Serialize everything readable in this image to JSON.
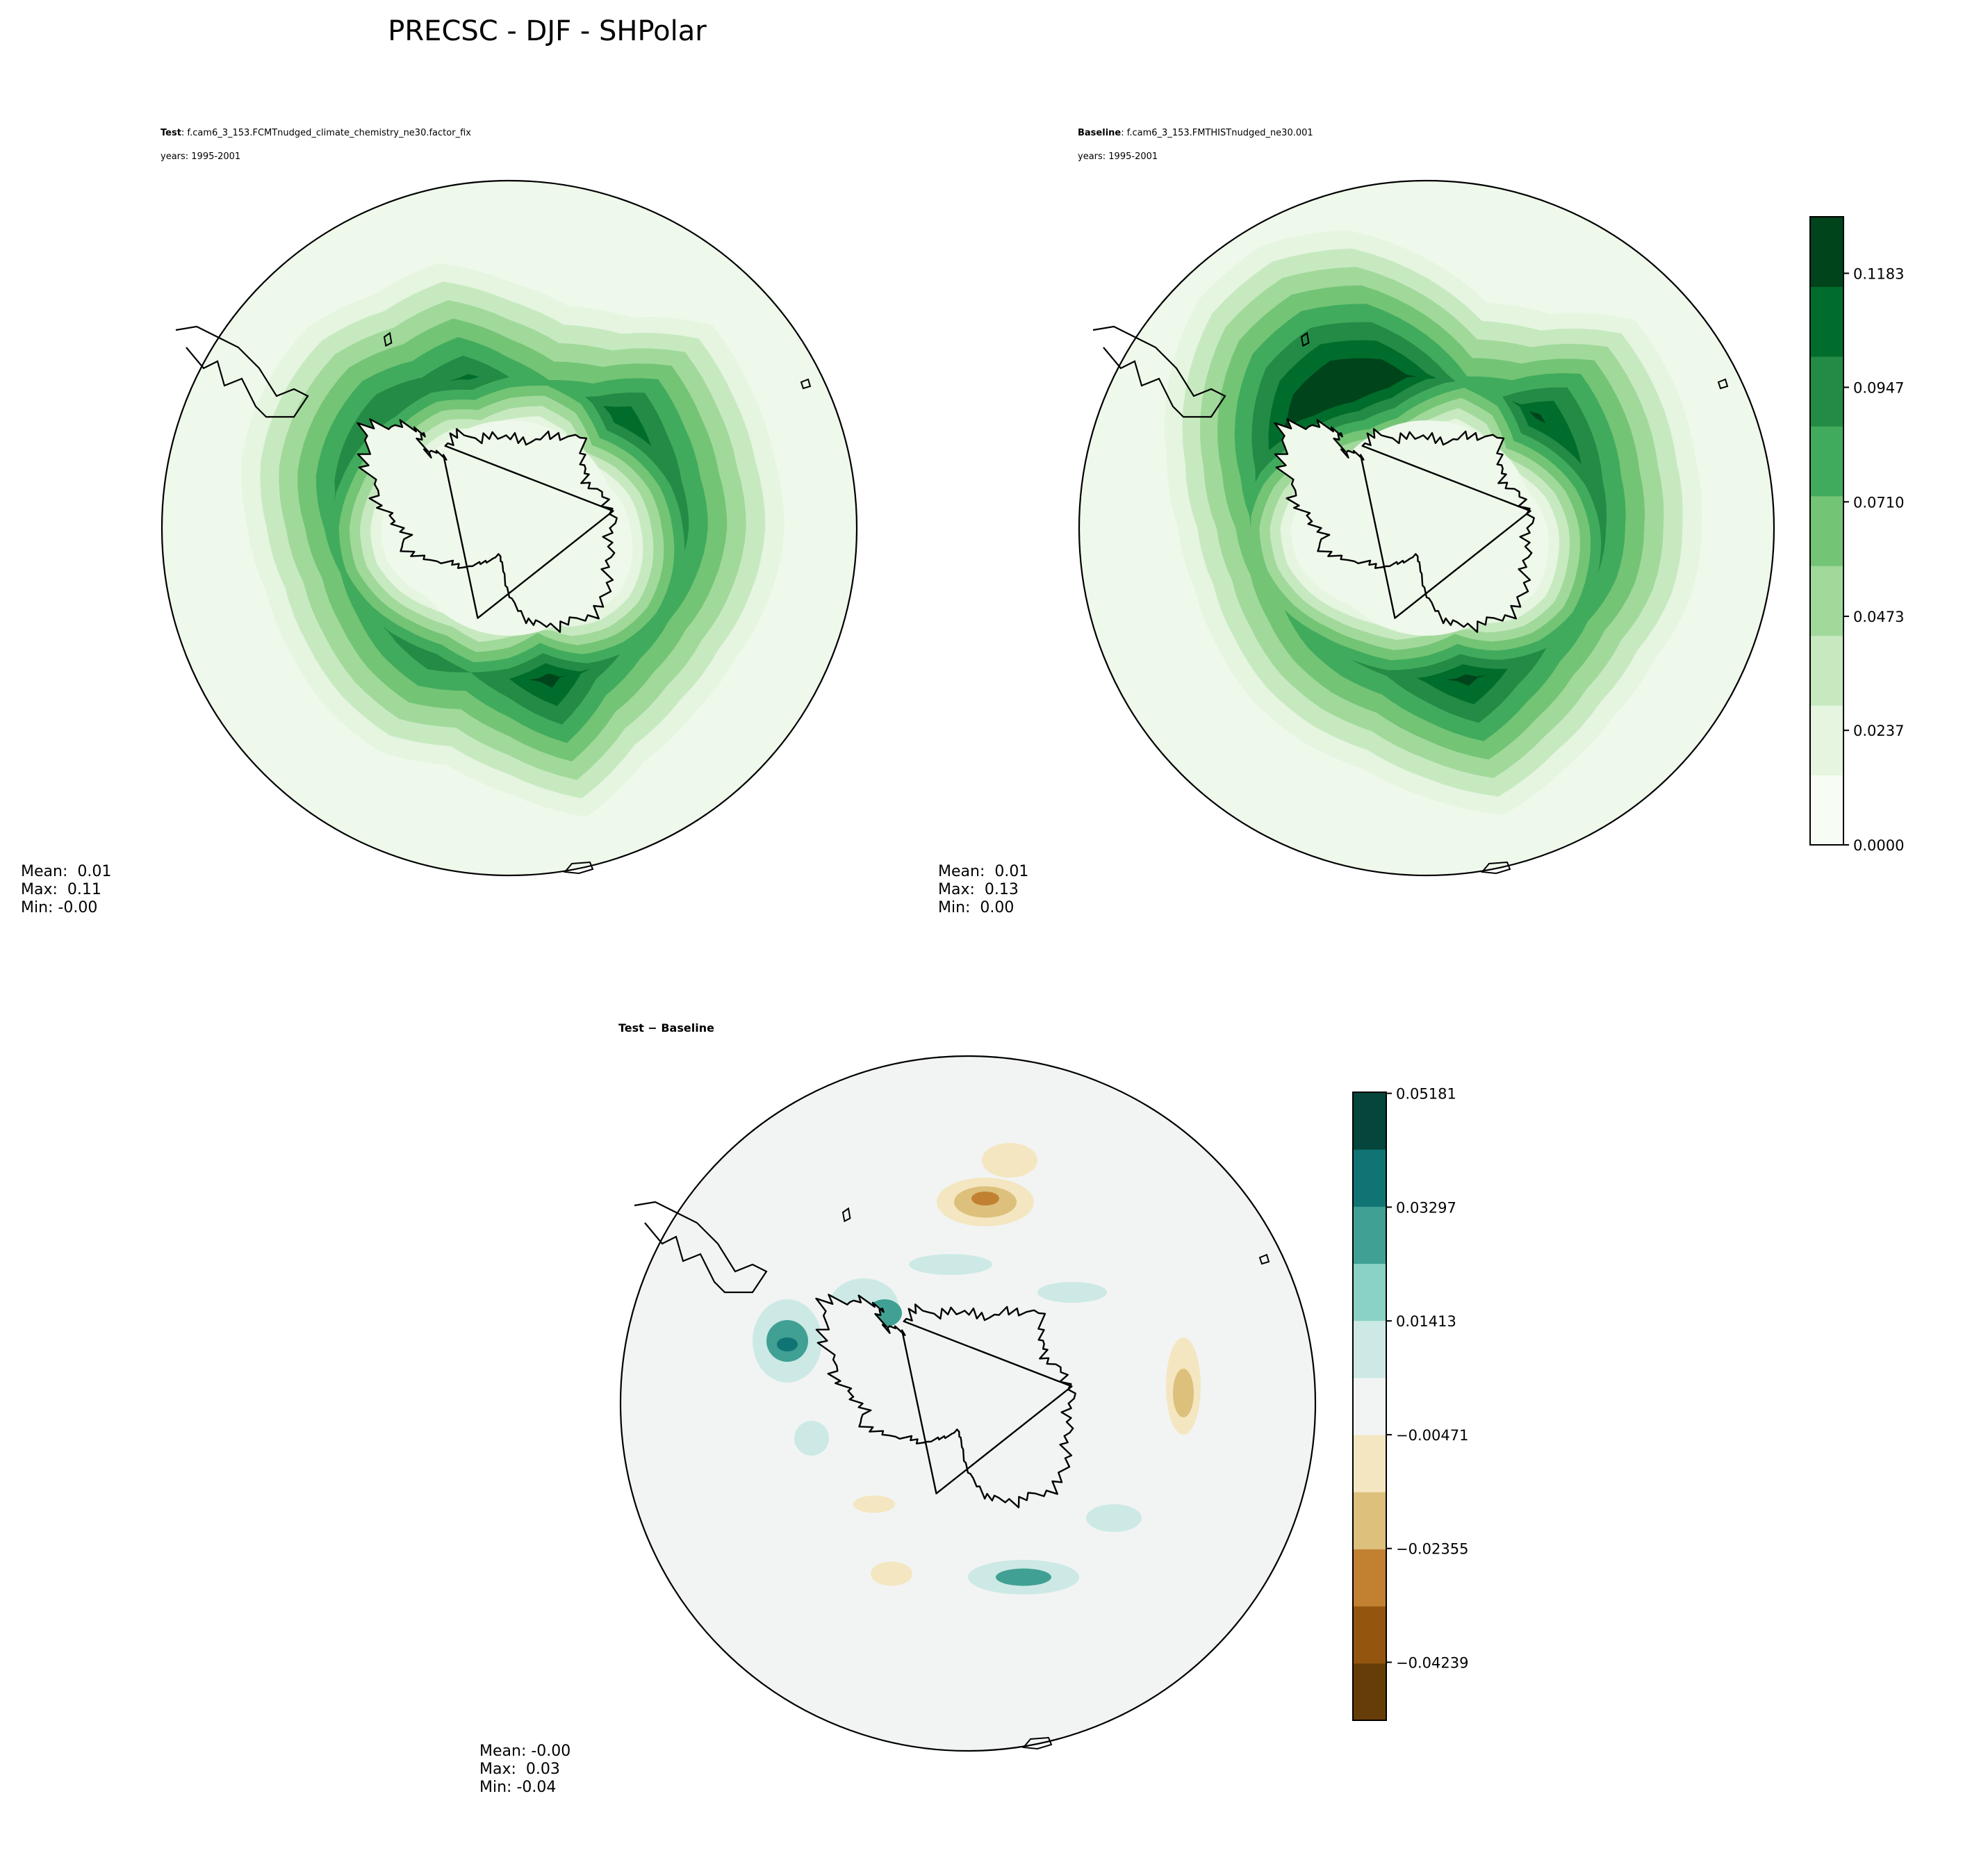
{
  "title": "PRECSC - DJF - SHPolar",
  "colors": {
    "ocean_test": "#eef8eb",
    "ocean_diff": "#f2f4f3",
    "coast": "#000000",
    "greens": [
      "#f7fcf5",
      "#e5f5e0",
      "#c7e9c0",
      "#a1d99b",
      "#74c476",
      "#41ab5d",
      "#238b45",
      "#006d2c",
      "#00441b"
    ],
    "brbg": [
      "#663d09",
      "#94560e",
      "#c18131",
      "#ddc07b",
      "#f4e6c1",
      "#f2f4f3",
      "#cce9e5",
      "#8ad2c5",
      "#40a094",
      "#107474",
      "#04463c"
    ]
  },
  "chart_data": [
    {
      "type": "heatmap",
      "name": "test",
      "label": "Test",
      "case": ": f.cam6_3_153.FCMTnudged_climate_chemistry_ne30.factor_fix",
      "years": "years: 1995-2001",
      "projection": "south polar stereographic",
      "stats": {
        "mean": "Mean:  0.01",
        "max": "Max:  0.11",
        "min": "Min: -0.00"
      },
      "band_intensity_by_longitude": [
        0.62,
        0.58,
        0.55,
        0.58,
        0.66,
        0.85,
        0.7,
        0.6,
        0.66,
        0.62,
        0.56,
        0.52,
        0.55,
        0.62,
        0.66,
        0.7,
        0.66,
        0.72,
        0.6,
        0.52,
        0.58,
        0.78,
        0.7,
        0.64
      ]
    },
    {
      "type": "heatmap",
      "name": "baseline",
      "label": "Baseline",
      "case": ": f.cam6_3_153.FMTHISTnudged_ne30.001",
      "years": "years: 1995-2001",
      "projection": "south polar stereographic",
      "stats": {
        "mean": "Mean:  0.01",
        "max": "Max:  0.13",
        "min": "Min:  0.00"
      },
      "band_intensity_by_longitude": [
        0.62,
        0.6,
        0.56,
        0.6,
        0.7,
        0.84,
        0.72,
        0.62,
        0.6,
        0.56,
        0.5,
        0.46,
        0.48,
        0.58,
        0.74,
        0.9,
        0.96,
        0.9,
        0.72,
        0.54,
        0.6,
        0.82,
        0.74,
        0.66
      ],
      "colorbar": {
        "ticks": [
          "0.0000",
          "0.0237",
          "0.0473",
          "0.0710",
          "0.0947",
          "0.1183"
        ],
        "range": [
          0,
          0.13
        ]
      }
    },
    {
      "type": "heatmap",
      "name": "difference",
      "label": "Test − Baseline",
      "label_left": "Test",
      "label_right": "Baseline",
      "projection": "south polar stereographic",
      "stats": {
        "mean": "Mean: -0.00",
        "max": "Max:  0.03",
        "min": "Min: -0.04"
      },
      "colorbar": {
        "ticks": [
          "0.05181",
          "0.03297",
          "0.01413",
          "−0.00471",
          "−0.02355",
          "−0.04239"
        ],
        "range": [
          -0.052,
          0.052
        ]
      }
    }
  ]
}
